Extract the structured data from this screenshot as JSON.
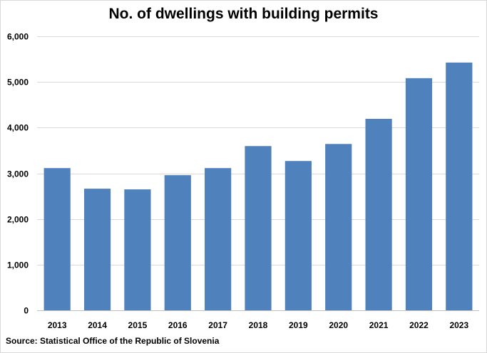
{
  "chart_data": {
    "type": "bar",
    "title": "No. of dwellings with building permits",
    "categories": [
      "2013",
      "2014",
      "2015",
      "2016",
      "2017",
      "2018",
      "2019",
      "2020",
      "2021",
      "2022",
      "2023"
    ],
    "values": [
      3114,
      2663,
      2648,
      2959,
      3114,
      3596,
      3269,
      3642,
      4192,
      5083,
      5425
    ],
    "ylim": [
      0,
      6000
    ],
    "yticks": [
      0,
      1000,
      2000,
      3000,
      4000,
      5000,
      6000
    ],
    "ytick_labels": [
      "0",
      "1,000",
      "2,000",
      "3,000",
      "4,000",
      "5,000",
      "6,000"
    ],
    "xlabel": "",
    "ylabel": "",
    "grid": true,
    "bar_color": "#4f81bd",
    "source": "Source:  Statistical Office of the Republic of Slovenia"
  }
}
